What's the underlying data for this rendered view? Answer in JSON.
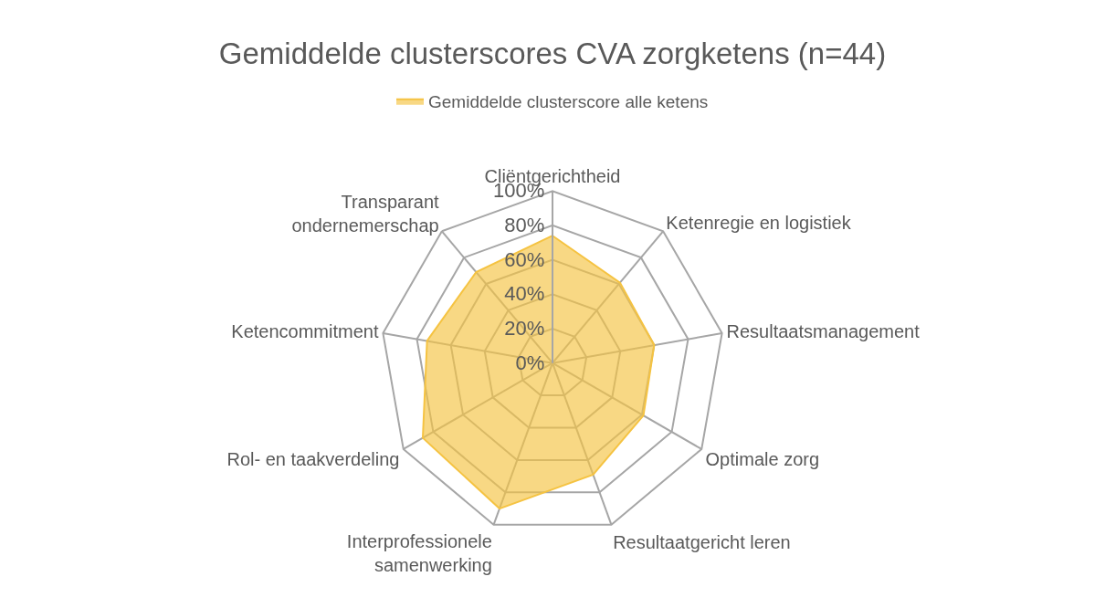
{
  "chart_data": {
    "type": "radar",
    "title": "Gemiddelde clusterscores CVA zorgketens (n=44)",
    "categories": [
      "Cliëntgerichtheid",
      "Ketenregie en logistiek",
      "Resultaatsmanagement",
      "Optimale zorg",
      "Resultaatgericht leren",
      "Interprofessionele\nsamenwerking",
      "Rol- en taakverdeling",
      "Ketencommitment",
      "Transparant\nondernemerschap"
    ],
    "series": [
      {
        "name": "Gemiddelde clusterscore alle ketens",
        "color": "#f5c342",
        "values": [
          74,
          61,
          60,
          61,
          69,
          90,
          87,
          74,
          69
        ]
      }
    ],
    "ylim": [
      0,
      100
    ],
    "yticks": [
      {
        "value": 0,
        "label": "0%"
      },
      {
        "value": 20,
        "label": "20%"
      },
      {
        "value": 40,
        "label": "40%"
      },
      {
        "value": 60,
        "label": "60%"
      },
      {
        "value": 80,
        "label": "80%"
      },
      {
        "value": 100,
        "label": "100%"
      }
    ],
    "legend": "top",
    "grid": true
  }
}
